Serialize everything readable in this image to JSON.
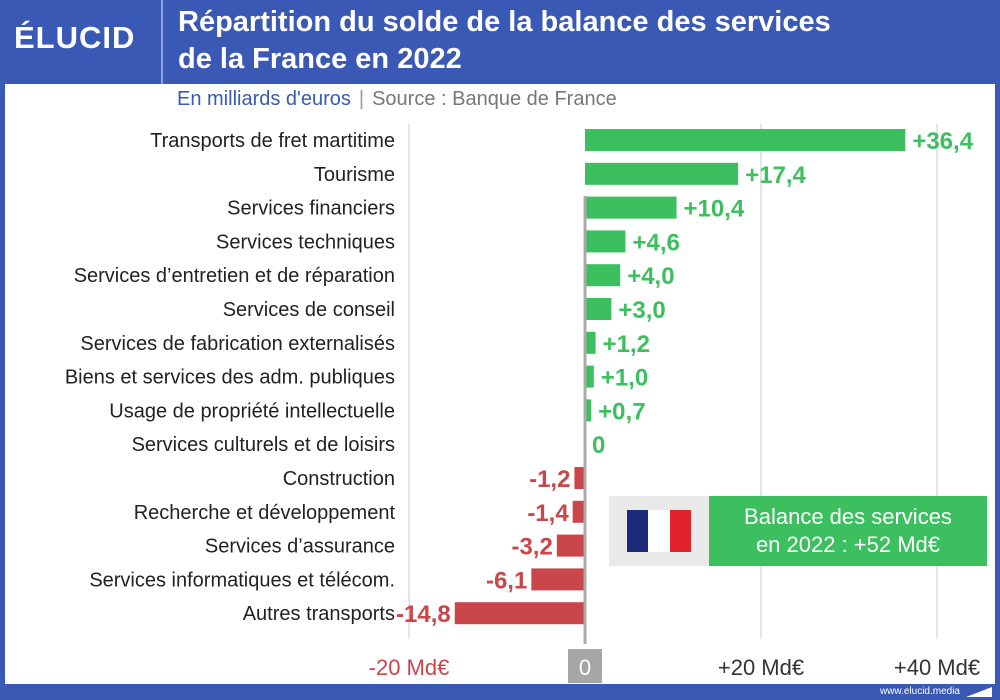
{
  "header": {
    "logo": "ÉLUCID",
    "title_line1": "Répartition du solde de la balance des services",
    "title_line2": "de la France en 2022"
  },
  "subtitle": {
    "unit": "En milliards d'euros",
    "separator": "|",
    "source": "Source : Banque de France"
  },
  "callout": {
    "line1": "Balance des services",
    "line2": "en 2022 : +52 Md€",
    "flag_colors": [
      "#1d2a7a",
      "#ffffff",
      "#e1242b"
    ]
  },
  "footer": {
    "url": "www.elucid.media"
  },
  "colors": {
    "positive": "#3cbf5e",
    "negative": "#c9464b",
    "zero_axis": "#aaaaaa",
    "grid": "#cccccc"
  },
  "chart_data": {
    "type": "bar",
    "orientation": "horizontal",
    "categories": [
      "Transports de fret martitime",
      "Tourisme",
      "Services financiers",
      "Services techniques",
      "Services d’entretien et de réparation",
      "Services de conseil",
      "Services de fabrication externalisés",
      "Biens et services des adm. publiques",
      "Usage de propriété intellectuelle",
      "Services culturels et de loisirs",
      "Construction",
      "Recherche et développement",
      "Services d’assurance",
      "Services informatiques et télécom.",
      "Autres transports"
    ],
    "values": [
      36.4,
      17.4,
      10.4,
      4.6,
      4.0,
      3.0,
      1.2,
      1.0,
      0.7,
      0,
      -1.2,
      -1.4,
      -3.2,
      -6.1,
      -14.8
    ],
    "value_labels": [
      "+36,4",
      "+17,4",
      "+10,4",
      "+4,6",
      "+4,0",
      "+3,0",
      "+1,2",
      "+1,0",
      "+0,7",
      "0",
      "-1,2",
      "-1,4",
      "-3,2",
      "-6,1",
      "-14,8"
    ],
    "xlim": [
      -20,
      40
    ],
    "xticks": [
      -20,
      0,
      20,
      40
    ],
    "xtick_labels": [
      "-20 Md€",
      "0",
      "+20 Md€",
      "+40 Md€"
    ],
    "grid": true,
    "legend": "none"
  }
}
